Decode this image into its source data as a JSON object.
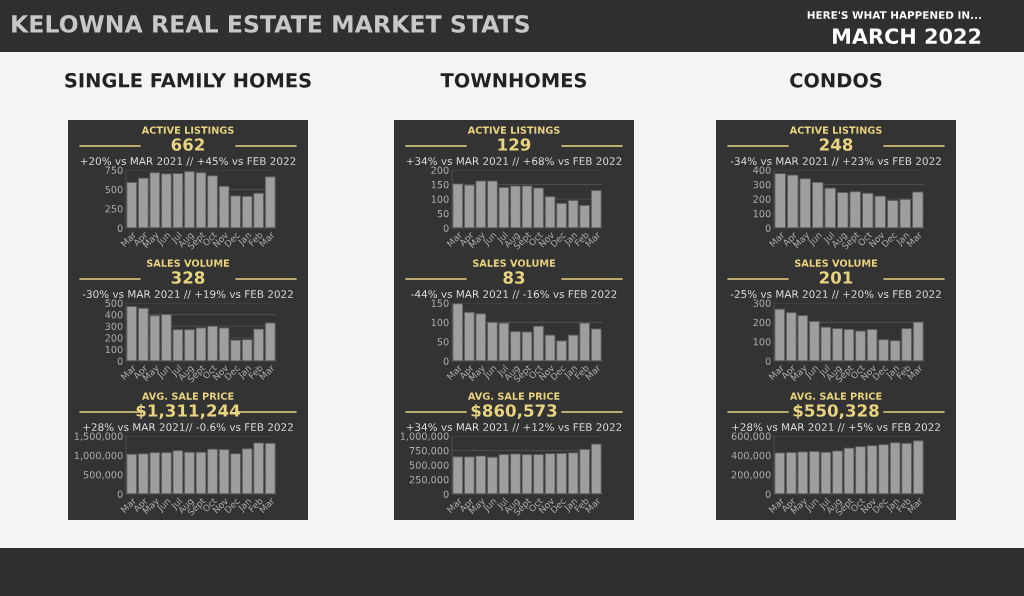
{
  "chart_data": [
    {
      "type": "bar",
      "title": "ACTIVE LISTINGS",
      "subtitle": "662",
      "annotations": [
        "KELOWNA REAL ESTATE MARKET STATS",
        "HERE'S WHAT HAPPENED IN...",
        "MARCH 2022",
        "SINGLE FAMILY HOMES",
        "+20% vs MAR 2021 // +45% vs FEB 2022"
      ],
      "categories": [
        "Mar",
        "Apr",
        "May",
        "Jun",
        "Jul",
        "Aug",
        "Sept",
        "Oct",
        "Nov",
        "Dec",
        "Jan",
        "Feb",
        "Mar"
      ],
      "values": [
        590,
        645,
        715,
        700,
        705,
        730,
        715,
        675,
        540,
        415,
        410,
        450,
        662
      ],
      "color": "#9e9e9e",
      "ylim": [
        0,
        750
      ],
      "yticks": [
        0,
        250,
        500,
        750
      ],
      "grid": "y"
    },
    {
      "type": "bar",
      "title": "SALES VOLUME",
      "subtitle": "328",
      "annotations": [
        "-30% vs MAR 2021 // +19% vs FEB 2022"
      ],
      "categories": [
        "Mar",
        "Apr",
        "May",
        "Jun",
        "Jul",
        "Aug",
        "Sept",
        "Oct",
        "Nov",
        "Dec",
        "Jan",
        "Feb",
        "Mar"
      ],
      "values": [
        470,
        455,
        390,
        400,
        270,
        270,
        285,
        300,
        285,
        180,
        185,
        275,
        328
      ],
      "color": "#9e9e9e",
      "ylim": [
        0,
        500
      ],
      "yticks": [
        0,
        100,
        200,
        300,
        400,
        500
      ],
      "grid": "y"
    },
    {
      "type": "bar",
      "title": "AVG. SALE PRICE",
      "subtitle": "$1,311,244",
      "annotations": [
        "+28% vs MAR 2021// -0.6% vs FEB 2022"
      ],
      "categories": [
        "Mar",
        "Apr",
        "May",
        "Jun",
        "Jul",
        "Aug",
        "Sept",
        "Oct",
        "Nov",
        "Dec",
        "Jan",
        "Feb",
        "Mar"
      ],
      "values": [
        1030000,
        1040000,
        1070000,
        1070000,
        1120000,
        1080000,
        1080000,
        1160000,
        1150000,
        1040000,
        1170000,
        1320000,
        1311244
      ],
      "color": "#9e9e9e",
      "ylim": [
        0,
        1500000
      ],
      "yticks": [
        0,
        {
          "value": 500000,
          "label": "500,000"
        },
        {
          "value": 1000000,
          "label": "1,000,000"
        },
        {
          "value": 1500000,
          "label": "1,500,000"
        }
      ],
      "grid": "y"
    },
    {
      "type": "bar",
      "title": "ACTIVE LISTINGS",
      "subtitle": "129",
      "annotations": [
        "TOWNHOMES",
        "+34% vs MAR 2021 // +68% vs FEB 2022"
      ],
      "categories": [
        "Mar",
        "Apr",
        "May",
        "Jun",
        "Jul",
        "Aug",
        "Sept",
        "Oct",
        "Nov",
        "Dec",
        "Jan",
        "Feb",
        "Mar"
      ],
      "values": [
        152,
        148,
        162,
        162,
        140,
        145,
        145,
        138,
        108,
        85,
        95,
        78,
        129
      ],
      "color": "#9e9e9e",
      "ylim": [
        0,
        200
      ],
      "yticks": [
        0,
        50,
        100,
        150,
        200
      ],
      "grid": "y"
    },
    {
      "type": "bar",
      "title": "SALES VOLUME",
      "subtitle": "83",
      "annotations": [
        "-44% vs MAR 2021 // -16% vs FEB 2022"
      ],
      "categories": [
        "Mar",
        "Apr",
        "May",
        "Jun",
        "Jul",
        "Aug",
        "Sept",
        "Oct",
        "Nov",
        "Dec",
        "Jan",
        "Feb",
        "Mar"
      ],
      "values": [
        148,
        126,
        122,
        100,
        98,
        76,
        75,
        90,
        67,
        52,
        67,
        98,
        83
      ],
      "color": "#9e9e9e",
      "ylim": [
        0,
        150
      ],
      "yticks": [
        0,
        50,
        100,
        150
      ],
      "grid": "y"
    },
    {
      "type": "bar",
      "title": "AVG. SALE PRICE",
      "subtitle": "$860,573",
      "annotations": [
        "+34% vs MAR 2021 // +12% vs FEB 2022"
      ],
      "categories": [
        "Mar",
        "Apr",
        "May",
        "Jun",
        "Jul",
        "Aug",
        "Sept",
        "Oct",
        "Nov",
        "Dec",
        "Jan",
        "Feb",
        "Mar"
      ],
      "values": [
        640000,
        640000,
        655000,
        635000,
        680000,
        690000,
        680000,
        680000,
        695000,
        700000,
        710000,
        770000,
        860573
      ],
      "color": "#9e9e9e",
      "ylim": [
        0,
        1000000
      ],
      "yticks": [
        0,
        {
          "value": 250000,
          "label": "250,000"
        },
        {
          "value": 500000,
          "label": "500,000"
        },
        {
          "value": 750000,
          "label": "750,000"
        },
        {
          "value": 1000000,
          "label": "1,000,000"
        }
      ],
      "grid": "y"
    },
    {
      "type": "bar",
      "title": "ACTIVE LISTINGS",
      "subtitle": "248",
      "annotations": [
        "CONDOS",
        "-34% vs MAR 2021 // +23% vs FEB 2022"
      ],
      "categories": [
        "Mar",
        "Apr",
        "May",
        "Jun",
        "Jul",
        "Aug",
        "Sept",
        "Oct",
        "Nov",
        "Dec",
        "Jan",
        "Mar"
      ],
      "values": [
        375,
        365,
        340,
        315,
        275,
        245,
        250,
        240,
        220,
        190,
        198,
        248
      ],
      "color": "#9e9e9e",
      "ylim": [
        0,
        400
      ],
      "yticks": [
        0,
        100,
        200,
        300,
        400
      ],
      "grid": "y"
    },
    {
      "type": "bar",
      "title": "SALES VOLUME",
      "subtitle": "201",
      "annotations": [
        "-25% vs MAR 2021 // +20% vs FEB 2022"
      ],
      "categories": [
        "Mar",
        "Apr",
        "May",
        "Jun",
        "Jul",
        "Aug",
        "Sept",
        "Oct",
        "Nov",
        "Dec",
        "Jan",
        "Feb",
        "Mar"
      ],
      "values": [
        268,
        250,
        235,
        205,
        175,
        168,
        163,
        155,
        163,
        110,
        105,
        168,
        201
      ],
      "color": "#9e9e9e",
      "ylim": [
        0,
        300
      ],
      "yticks": [
        0,
        100,
        200,
        300
      ],
      "grid": "y"
    },
    {
      "type": "bar",
      "title": "AVG. SALE PRICE",
      "subtitle": "$550,328",
      "annotations": [
        "+28% vs MAR 2021 // +5% vs FEB 2022"
      ],
      "categories": [
        "Mar",
        "Apr",
        "May",
        "Jun",
        "Jul",
        "Aug",
        "Sept",
        "Oct",
        "Nov",
        "Dec",
        "Jan",
        "Feb",
        "Mar"
      ],
      "values": [
        425000,
        430000,
        435000,
        440000,
        432000,
        445000,
        475000,
        490000,
        500000,
        510000,
        530000,
        525000,
        550328
      ],
      "color": "#9e9e9e",
      "ylim": [
        0,
        600000
      ],
      "yticks": [
        0,
        {
          "value": 200000,
          "label": "200,000"
        },
        {
          "value": 400000,
          "label": "400,000"
        },
        {
          "value": 600000,
          "label": "600,000"
        }
      ],
      "grid": "y"
    }
  ]
}
